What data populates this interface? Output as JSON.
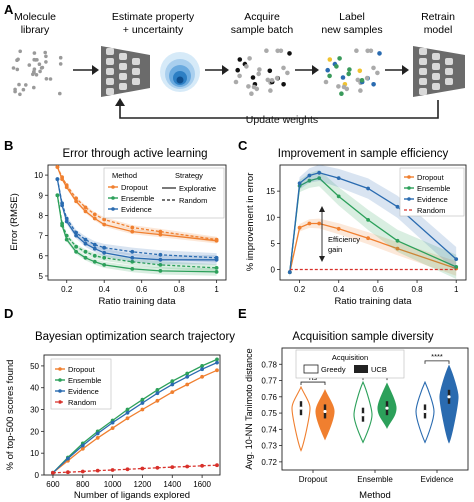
{
  "panel_a": {
    "letter": "A",
    "steps": [
      "Molecule library",
      "Estimate property + uncertainty",
      "Acquire sample batch",
      "Label new samples",
      "Retrain model"
    ],
    "feedback_label": "Update weights"
  },
  "colors": {
    "dropout": "#f07f2f",
    "ensemble": "#2ca05a",
    "evidence": "#2a6bb0",
    "random": "#d8302a"
  },
  "chart_data": [
    {
      "id": "B",
      "type": "line",
      "title": "Error through active learning",
      "xlabel": "Ratio training data",
      "ylabel": "Error (RMSE)",
      "xlim": [
        0.1,
        1.05
      ],
      "ylim": [
        4.8,
        10.5
      ],
      "xticks": [
        0.2,
        0.4,
        0.6,
        0.8,
        1.0
      ],
      "yticks": [
        5,
        6,
        7,
        8,
        9,
        10
      ],
      "legend": {
        "method_title": "Method",
        "strategy_title": "Strategy",
        "methods": [
          "Dropout",
          "Ensemble",
          "Evidence"
        ],
        "strategies": [
          "Explorative",
          "Random"
        ]
      },
      "x": [
        0.15,
        0.175,
        0.2,
        0.25,
        0.3,
        0.35,
        0.4,
        0.55,
        0.7,
        1.0
      ],
      "series": [
        {
          "name": "Dropout",
          "strategy": "Explorative",
          "values": [
            10.4,
            9.8,
            9.4,
            8.7,
            8.2,
            7.85,
            7.55,
            7.2,
            7.05,
            6.75
          ]
        },
        {
          "name": "Dropout",
          "strategy": "Random",
          "values": [
            10.4,
            9.9,
            9.5,
            8.85,
            8.4,
            8.05,
            7.8,
            7.4,
            7.2,
            6.8
          ]
        },
        {
          "name": "Ensemble",
          "strategy": "Explorative",
          "values": [
            9.0,
            7.5,
            6.8,
            6.2,
            5.9,
            5.7,
            5.55,
            5.35,
            5.25,
            5.2
          ]
        },
        {
          "name": "Ensemble",
          "strategy": "Random",
          "values": [
            9.0,
            7.6,
            7.0,
            6.45,
            6.2,
            6.0,
            5.9,
            5.7,
            5.55,
            5.4
          ]
        },
        {
          "name": "Evidence",
          "strategy": "Explorative",
          "values": [
            9.8,
            8.5,
            7.7,
            7.0,
            6.6,
            6.35,
            6.15,
            5.9,
            5.8,
            5.8
          ]
        },
        {
          "name": "Evidence",
          "strategy": "Random",
          "values": [
            9.8,
            8.6,
            7.85,
            7.15,
            6.8,
            6.55,
            6.4,
            6.2,
            6.05,
            5.9
          ]
        }
      ]
    },
    {
      "id": "C",
      "type": "line",
      "title": "Improvement in sample efficiency",
      "xlabel": "Ratio training data",
      "ylabel": "% improvement in error",
      "xlim": [
        0.1,
        1.05
      ],
      "ylim": [
        -2,
        20
      ],
      "xticks": [
        0.2,
        0.4,
        0.6,
        0.8,
        1.0
      ],
      "yticks": [
        0,
        5,
        10,
        15
      ],
      "legend_entries": [
        "Dropout",
        "Ensemble",
        "Evidence",
        "Random"
      ],
      "annotation": "Efficiency gain",
      "x": [
        0.15,
        0.2,
        0.25,
        0.3,
        0.4,
        0.55,
        0.7,
        1.0
      ],
      "series": [
        {
          "name": "Dropout",
          "values": [
            -0.5,
            8.0,
            8.8,
            8.8,
            7.8,
            6.0,
            4.0,
            0.2
          ]
        },
        {
          "name": "Ensemble",
          "values": [
            -0.5,
            16.0,
            17.0,
            17.5,
            14.0,
            9.5,
            5.5,
            0.5
          ]
        },
        {
          "name": "Evidence",
          "values": [
            -0.5,
            16.5,
            18.0,
            18.5,
            17.5,
            15.5,
            12.0,
            2.0
          ]
        },
        {
          "name": "Random",
          "values": [
            0,
            0,
            0,
            0,
            0,
            0,
            0,
            0
          ]
        }
      ]
    },
    {
      "id": "D",
      "type": "line",
      "title": "Bayesian optimization search trajectory",
      "xlabel": "Number of ligands explored",
      "ylabel": "% of top-500 scores found",
      "xlim": [
        540,
        1720
      ],
      "ylim": [
        0,
        55
      ],
      "xticks": [
        600,
        800,
        1000,
        1200,
        1400,
        1600
      ],
      "yticks": [
        0,
        10,
        20,
        30,
        40,
        50
      ],
      "legend_entries": [
        "Dropout",
        "Ensemble",
        "Evidence",
        "Random"
      ],
      "x": [
        600,
        700,
        800,
        900,
        1000,
        1100,
        1200,
        1300,
        1400,
        1500,
        1600,
        1700
      ],
      "series": [
        {
          "name": "Dropout",
          "values": [
            1,
            6.5,
            12,
            17,
            21.5,
            26,
            30,
            34,
            38,
            41.5,
            45,
            48
          ]
        },
        {
          "name": "Ensemble",
          "values": [
            1,
            8,
            14.5,
            20,
            25,
            30,
            34.5,
            39,
            43,
            46.5,
            50,
            53
          ]
        },
        {
          "name": "Evidence",
          "values": [
            1,
            7.5,
            13.5,
            19,
            24,
            28.5,
            33,
            37.5,
            41.5,
            45,
            48.5,
            51.5
          ]
        },
        {
          "name": "Random",
          "values": [
            1,
            1.3,
            1.6,
            2.0,
            2.3,
            2.6,
            3.0,
            3.3,
            3.6,
            3.9,
            4.2,
            4.5
          ]
        }
      ]
    },
    {
      "id": "E",
      "type": "violin",
      "title": "Acquisition sample diversity",
      "xlabel": "Method",
      "ylabel": "Avg. 10-NN Tanimoto distance",
      "ylim": [
        0.715,
        0.79
      ],
      "yticks": [
        0.72,
        0.73,
        0.74,
        0.75,
        0.76,
        0.77,
        0.78
      ],
      "categories": [
        "Dropout",
        "Ensemble",
        "Evidence"
      ],
      "legend": {
        "title": "Acquisition",
        "entries": [
          "Greedy",
          "UCB"
        ]
      },
      "groups": [
        {
          "method": "Dropout",
          "greedy": {
            "min": 0.727,
            "max": 0.766,
            "median": 0.753
          },
          "ucb": {
            "min": 0.734,
            "max": 0.764,
            "median": 0.751
          },
          "significance": "ns"
        },
        {
          "method": "Ensemble",
          "greedy": {
            "min": 0.732,
            "max": 0.769,
            "median": 0.749
          },
          "ucb": {
            "min": 0.741,
            "max": 0.768,
            "median": 0.753
          },
          "significance": "ns"
        },
        {
          "method": "Evidence",
          "greedy": {
            "min": 0.732,
            "max": 0.769,
            "median": 0.751
          },
          "ucb": {
            "min": 0.732,
            "max": 0.779,
            "median": 0.76
          },
          "significance": "****"
        }
      ]
    }
  ]
}
